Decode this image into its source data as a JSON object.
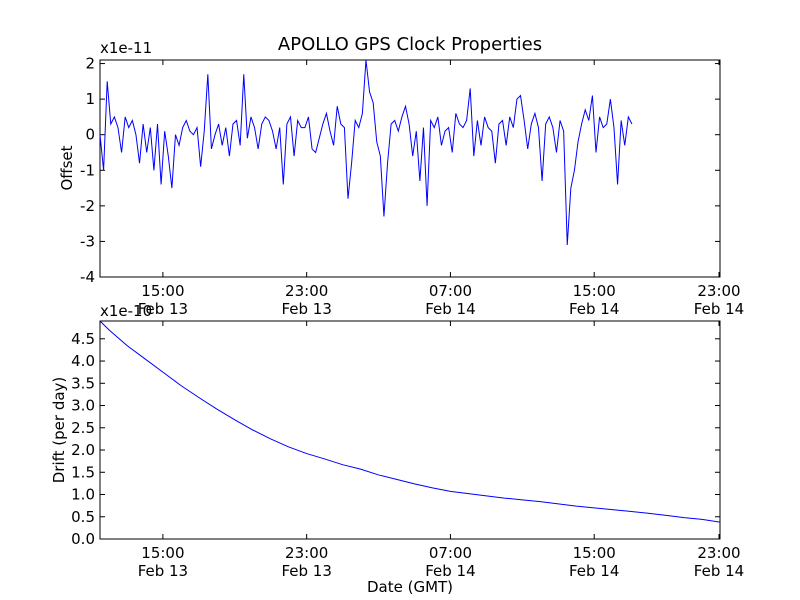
{
  "figure_title": "APOLLO GPS Clock Properties",
  "chart_data": [
    {
      "type": "line",
      "id": "offset",
      "title": "APOLLO GPS Clock Properties",
      "xlabel": "",
      "ylabel": "Offset",
      "multiplier_label": "x1e-11",
      "xlim": [
        11.5,
        46.0
      ],
      "ylim": [
        -4,
        2.1
      ],
      "yticks": [
        -4,
        -3,
        -2,
        -1,
        0,
        1,
        2
      ],
      "ytick_labels": [
        "-4",
        "-3",
        "-2",
        "-1",
        "0",
        "1",
        "2"
      ],
      "xticks": [
        15,
        23,
        31,
        39,
        47
      ],
      "xtick_labels": [
        [
          "15:00",
          "Feb 13"
        ],
        [
          "23:00",
          "Feb 13"
        ],
        [
          "07:00",
          "Feb 14"
        ],
        [
          "15:00",
          "Feb 14"
        ],
        [
          "23:00",
          "Feb 14"
        ]
      ],
      "line_color": "#0000ff",
      "series": [
        {
          "name": "offset",
          "x_start": 11.5,
          "x_step": 0.2,
          "units_note": "x in hours from Feb 13 00:00 GMT",
          "values": [
            0.0,
            -1.0,
            1.5,
            0.3,
            0.5,
            0.2,
            -0.5,
            0.5,
            0.2,
            0.4,
            0.0,
            -0.8,
            0.3,
            -0.5,
            0.2,
            -1.0,
            0.3,
            -1.4,
            0.1,
            -0.6,
            -1.5,
            0.0,
            -0.3,
            0.2,
            0.4,
            0.1,
            0.0,
            0.2,
            -0.9,
            0.1,
            1.7,
            -0.4,
            0.0,
            0.3,
            -0.3,
            0.2,
            -0.6,
            0.3,
            0.4,
            -0.3,
            1.7,
            -0.1,
            0.5,
            0.2,
            -0.4,
            0.3,
            0.5,
            0.4,
            0.1,
            -0.4,
            0.2,
            -1.4,
            0.3,
            0.5,
            -0.6,
            0.4,
            0.2,
            0.2,
            0.5,
            -0.4,
            -0.5,
            -0.1,
            0.3,
            0.6,
            0.1,
            -0.3,
            0.8,
            0.3,
            0.2,
            -1.8,
            -0.8,
            0.4,
            0.2,
            0.6,
            2.1,
            1.2,
            0.9,
            -0.2,
            -0.6,
            -2.3,
            -0.8,
            0.3,
            0.4,
            0.1,
            0.5,
            0.8,
            0.3,
            -0.6,
            0.1,
            -1.3,
            0.2,
            -2.0,
            0.4,
            0.2,
            0.5,
            -0.3,
            0.1,
            0.2,
            -0.5,
            0.6,
            0.3,
            0.2,
            0.4,
            1.3,
            -0.6,
            0.4,
            -0.3,
            0.5,
            0.2,
            0.1,
            -0.8,
            0.3,
            0.4,
            -0.3,
            0.5,
            0.2,
            1.0,
            1.1,
            0.4,
            -0.4,
            0.3,
            0.6,
            0.2,
            -1.3,
            0.3,
            0.5,
            0.2,
            -0.5,
            0.4,
            0.1,
            -3.1,
            -1.5,
            -1.0,
            -0.2,
            0.3,
            0.7,
            0.4,
            1.1,
            -0.5,
            0.5,
            0.2,
            0.3,
            1.0,
            0.2,
            -1.4,
            0.4,
            -0.3,
            0.5,
            0.3
          ]
        }
      ]
    },
    {
      "type": "line",
      "id": "drift",
      "title": "",
      "xlabel": "Date (GMT)",
      "ylabel": "Drift (per day)",
      "multiplier_label": "x1e-10",
      "xlim": [
        11.5,
        46.0
      ],
      "ylim": [
        0.0,
        4.9
      ],
      "yticks": [
        0.0,
        0.5,
        1.0,
        1.5,
        2.0,
        2.5,
        3.0,
        3.5,
        4.0,
        4.5
      ],
      "ytick_labels": [
        "0.0",
        "0.5",
        "1.0",
        "1.5",
        "2.0",
        "2.5",
        "3.0",
        "3.5",
        "4.0",
        "4.5"
      ],
      "xticks": [
        15,
        23,
        31,
        39,
        47
      ],
      "xtick_labels": [
        [
          "15:00",
          "Feb 13"
        ],
        [
          "23:00",
          "Feb 13"
        ],
        [
          "07:00",
          "Feb 14"
        ],
        [
          "15:00",
          "Feb 14"
        ],
        [
          "23:00",
          "Feb 14"
        ]
      ],
      "line_color": "#0000ff",
      "series": [
        {
          "name": "drift",
          "x": [
            11.5,
            12.0,
            13.0,
            14.0,
            15.0,
            16.0,
            17.0,
            18.0,
            19.0,
            20.0,
            21.0,
            22.0,
            23.0,
            24.0,
            25.0,
            26.0,
            27.0,
            28.0,
            29.0,
            30.0,
            31.0,
            32.0,
            33.0,
            34.0,
            35.0,
            36.0,
            37.0,
            38.0,
            39.0,
            40.0,
            41.0,
            42.0,
            43.0,
            44.0,
            45.0,
            46.0
          ],
          "values": [
            4.9,
            4.7,
            4.35,
            4.05,
            3.75,
            3.45,
            3.18,
            2.92,
            2.68,
            2.45,
            2.25,
            2.07,
            1.92,
            1.8,
            1.67,
            1.57,
            1.44,
            1.34,
            1.24,
            1.15,
            1.07,
            1.02,
            0.97,
            0.92,
            0.88,
            0.84,
            0.79,
            0.74,
            0.7,
            0.66,
            0.62,
            0.58,
            0.53,
            0.48,
            0.44,
            0.38
          ]
        }
      ]
    }
  ]
}
